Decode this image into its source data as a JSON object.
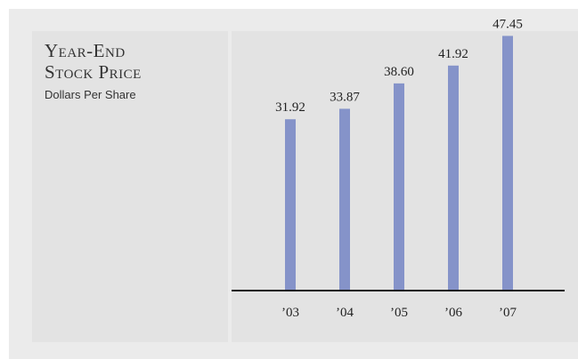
{
  "title_lines": [
    "Year-End",
    "Stock Price"
  ],
  "subtitle": "Dollars Per Share",
  "colors": {
    "bar": "#8593c9",
    "axis": "#1a1a1a",
    "panel": "#e3e3e3",
    "background": "#ebebeb"
  },
  "chart_data": {
    "type": "bar",
    "title": "Year-End Stock Price",
    "subtitle": "Dollars Per Share",
    "categories": [
      "’03",
      "’04",
      "’05",
      "’06",
      "’07"
    ],
    "values": [
      31.92,
      33.87,
      38.6,
      41.92,
      47.45
    ],
    "value_labels": [
      "31.92",
      "33.87",
      "38.60",
      "41.92",
      "47.45"
    ],
    "ylim": [
      0,
      50
    ],
    "grid": false,
    "legend": "none"
  }
}
